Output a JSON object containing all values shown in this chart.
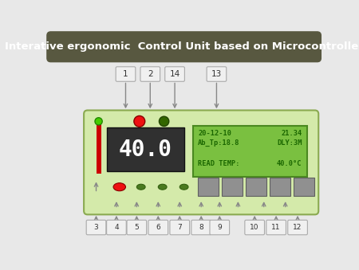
{
  "title": "Interative ergonomic  Control Unit based on Microcontroller",
  "title_bg": "#585840",
  "title_color": "#ffffff",
  "bg_color": "#e8e8e8",
  "panel_bg": "#d4eaaa",
  "panel_border": "#8aaa50",
  "display_bg": "#303030",
  "display_text": "40.0",
  "display_text_color": "#ffffff",
  "lcd_bg": "#7ac040",
  "lcd_border": "#4a8820",
  "lcd_text_color": "#1a6600",
  "red_bar_color": "#cc0000",
  "led_green_color": "#44cc00",
  "led_green_border": "#228800",
  "led_red_color": "#ee1111",
  "led_red_border": "#880000",
  "led_darkgreen_color": "#336600",
  "led_darkgreen_border": "#224400",
  "button_gray": "#909090",
  "button_border": "#606060",
  "arrow_color": "#888888",
  "label_box_color": "#f0f0f0",
  "label_box_border": "#aaaaaa",
  "top_label_nums": [
    "1",
    "2",
    "14",
    "13"
  ],
  "bottom_label_nums": [
    "3",
    "4",
    "5",
    "6",
    "7",
    "8",
    "9",
    "10",
    "11",
    "12"
  ],
  "lcd_line1_left": "20-12-10",
  "lcd_line1_right": "21.34",
  "lcd_line2_left": "Ab_Tp:18.8",
  "lcd_line2_right": "DLY:3M",
  "lcd_line4_left": "READ TEMP:",
  "lcd_line4_right": "40.0°C"
}
